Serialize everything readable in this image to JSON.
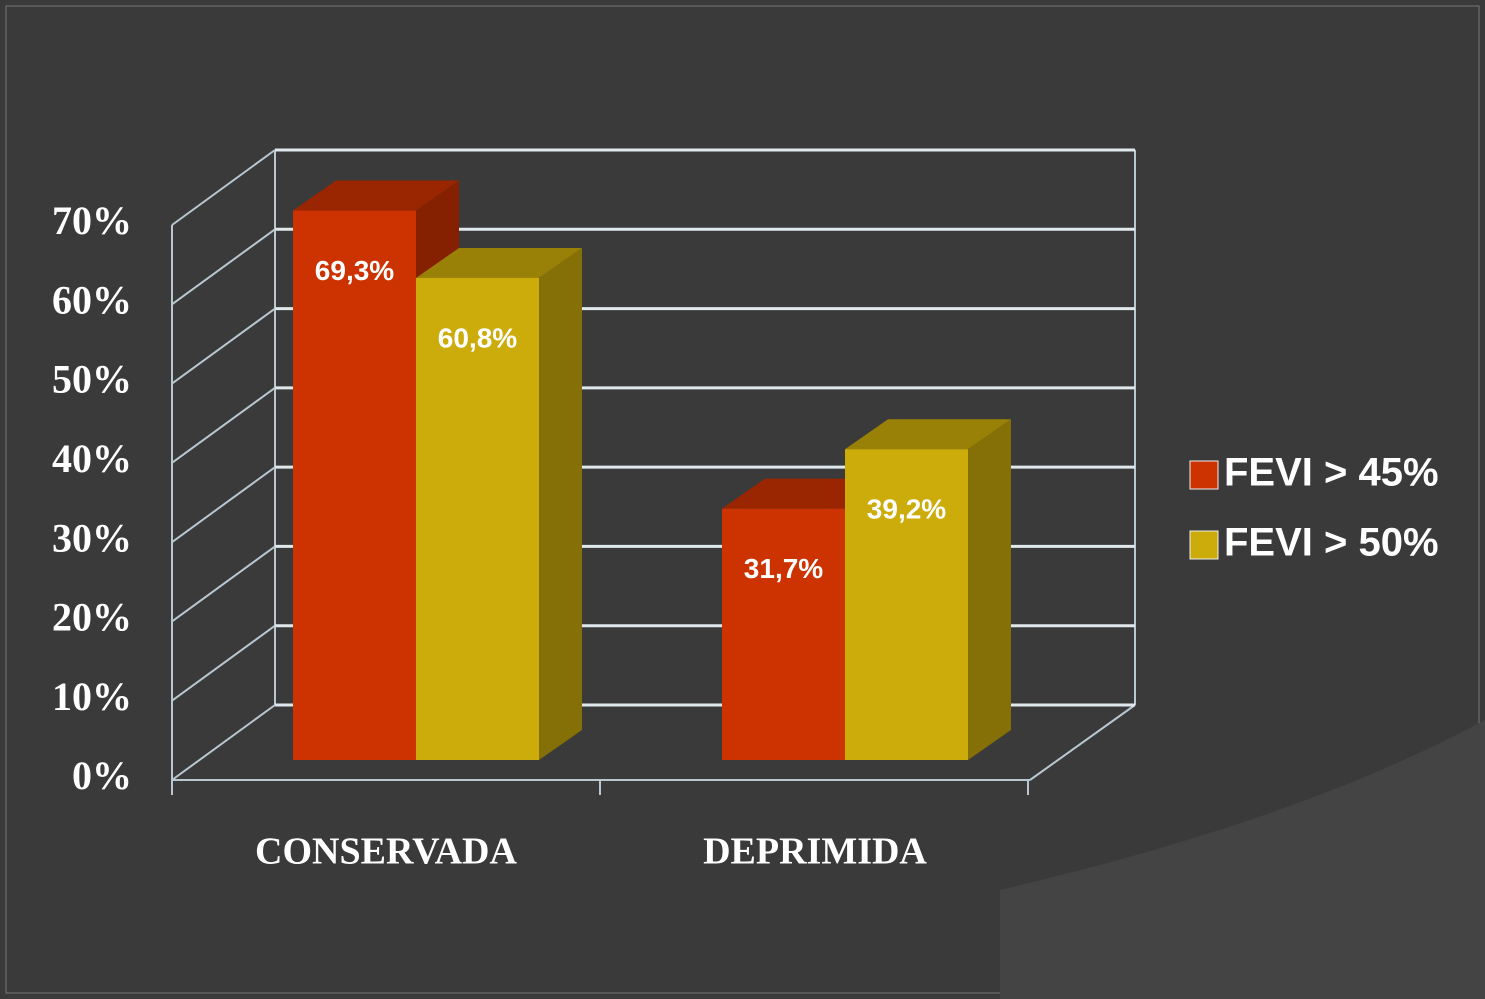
{
  "chart_data": {
    "type": "bar3d",
    "categories": [
      "CONSERVADA",
      "DEPRIMIDA"
    ],
    "series": [
      {
        "name": "FEVI > 45%",
        "color": "#cc3300",
        "values": [
          69.3,
          31.7
        ],
        "value_labels": [
          "69,3%",
          "31,7%"
        ]
      },
      {
        "name": "FEVI > 50%",
        "color": "#ccac0a",
        "values": [
          60.8,
          39.2
        ],
        "value_labels": [
          "60,8%",
          "39,2%"
        ]
      }
    ],
    "ylim": [
      0,
      70
    ],
    "yticks": [
      {
        "value": 0,
        "label": "0%"
      },
      {
        "value": 10,
        "label": "10%"
      },
      {
        "value": 20,
        "label": "20%"
      },
      {
        "value": 30,
        "label": "30%"
      },
      {
        "value": 40,
        "label": "40%"
      },
      {
        "value": 50,
        "label": "50%"
      },
      {
        "value": 60,
        "label": "60%"
      },
      {
        "value": 70,
        "label": "70%"
      }
    ],
    "grid": true,
    "legend": "right"
  }
}
